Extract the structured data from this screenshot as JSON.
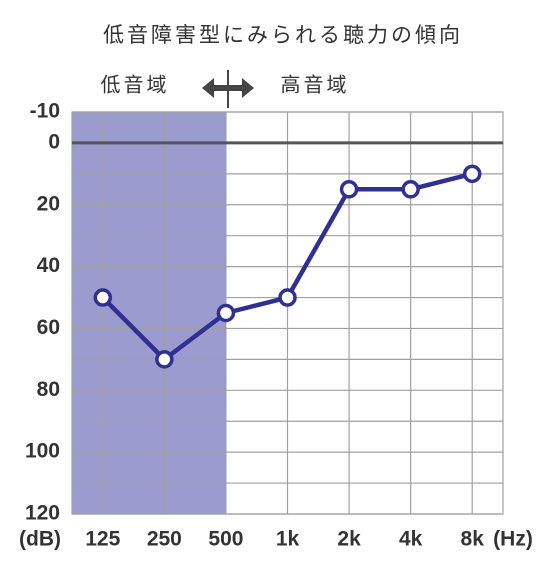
{
  "chart_data": {
    "type": "line",
    "title": "低音障害型にみられる聴力の傾向",
    "annotations": [
      "低音域",
      "高音域"
    ],
    "x_unit": "(Hz)",
    "y_unit": "(dB)",
    "categories": [
      "125",
      "250",
      "500",
      "1k",
      "2k",
      "4k",
      "8k"
    ],
    "series": [
      {
        "color": "#2e3192",
        "values": [
          50,
          70,
          55,
          50,
          15,
          15,
          10
        ]
      }
    ],
    "ylim": [
      -10,
      120
    ],
    "yticks": [
      -10,
      0,
      20,
      40,
      60,
      80,
      100,
      120
    ],
    "grid_lines": [
      -10,
      0,
      10,
      20,
      30,
      40,
      50,
      60,
      70,
      80,
      90,
      100,
      110,
      120
    ],
    "y_inverted": true,
    "shade_color": "#9b9bcf",
    "zero_line_color": "#555555",
    "grid_color": "#a0a0a0"
  }
}
